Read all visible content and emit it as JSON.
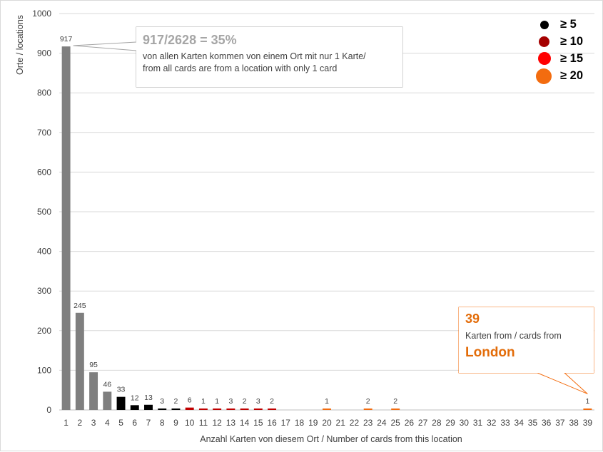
{
  "chart_data": {
    "type": "bar",
    "categories": [
      "1",
      "2",
      "3",
      "4",
      "5",
      "6",
      "7",
      "8",
      "9",
      "10",
      "11",
      "12",
      "13",
      "14",
      "15",
      "16",
      "17",
      "18",
      "19",
      "20",
      "21",
      "22",
      "23",
      "24",
      "25",
      "26",
      "27",
      "28",
      "29",
      "30",
      "31",
      "32",
      "33",
      "34",
      "35",
      "36",
      "37",
      "38",
      "39"
    ],
    "values": [
      917,
      245,
      95,
      46,
      33,
      12,
      13,
      3,
      2,
      6,
      1,
      1,
      3,
      2,
      3,
      2,
      0,
      0,
      0,
      1,
      0,
      0,
      2,
      0,
      2,
      0,
      0,
      0,
      0,
      0,
      0,
      0,
      0,
      0,
      0,
      0,
      0,
      0,
      1
    ],
    "data_labels": [
      "917",
      "245",
      "95",
      "46",
      "33",
      "12",
      "13",
      "3",
      "2",
      "6",
      "1",
      "1",
      "3",
      "2",
      "3",
      "2",
      "",
      "",
      "",
      "1",
      "",
      "",
      "2",
      "",
      "2",
      "",
      "",
      "",
      "",
      "",
      "",
      "",
      "",
      "",
      "",
      "",
      "",
      "",
      "1"
    ],
    "bar_colors": [
      "#7f7f7f",
      "#7f7f7f",
      "#7f7f7f",
      "#7f7f7f",
      "#000000",
      "#000000",
      "#000000",
      "#000000",
      "#000000",
      "#c00000",
      "#c00000",
      "#c00000",
      "#c00000",
      "#c00000",
      "#c00000",
      "#c00000",
      "#c00000",
      "#c00000",
      "#c00000",
      "#f36c0f",
      "#f36c0f",
      "#f36c0f",
      "#f36c0f",
      "#f36c0f",
      "#f36c0f",
      "#f36c0f",
      "#f36c0f",
      "#f36c0f",
      "#f36c0f",
      "#f36c0f",
      "#f36c0f",
      "#f36c0f",
      "#f36c0f",
      "#f36c0f",
      "#f36c0f",
      "#f36c0f",
      "#f36c0f",
      "#f36c0f",
      "#f36c0f"
    ],
    "xlabel": "Anzahl Karten von diesem Ort / Number of cards from this location",
    "ylabel": "Orte / locations",
    "ylim": [
      0,
      1000
    ],
    "yticks": [
      0,
      100,
      200,
      300,
      400,
      500,
      600,
      700,
      800,
      900,
      1000
    ],
    "grid": true,
    "legend": [
      {
        "label": "≥ 5",
        "color": "#000000"
      },
      {
        "label": "≥ 10",
        "color": "#a50000"
      },
      {
        "label": "≥ 15",
        "color": "#ff0000"
      },
      {
        "label": "≥ 20",
        "color": "#f36c0f"
      }
    ],
    "legend_position": "top-right",
    "annotations": {
      "main": {
        "headline": "917/2628 = 35%",
        "line1": "von allen Karten kommen von einem Ort mit nur 1 Karte/",
        "line2": "from all cards are from a location with only 1 card",
        "text_color": "#a6a6a6",
        "border_color": "#a6a6a6",
        "points_to": "1"
      },
      "london": {
        "number": "39",
        "text": "Karten from / cards from",
        "city": "London",
        "text_color": "#e36c09",
        "border_color": "#f36c0f",
        "points_to": "39"
      }
    }
  }
}
